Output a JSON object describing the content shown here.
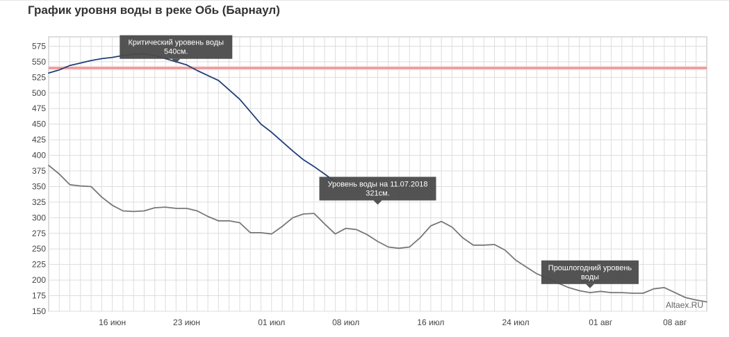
{
  "title": "График уровня воды в реке Обь (Барнаул)",
  "colors": {
    "current": "#1f3f7a",
    "last_year": "#777777",
    "critical": "#e07070",
    "tooltip_bg": "#4a4a4a",
    "grid": "#dddddd"
  },
  "chart_data": {
    "type": "line",
    "title": "График уровня воды в реке Обь (Барнаул)",
    "xlabel": "",
    "ylabel": "",
    "ylim": [
      150,
      590
    ],
    "xlim": [
      "2018-06-10",
      "2018-08-11"
    ],
    "x_ticks": [
      {
        "date": "2018-06-16",
        "label": "16 июн"
      },
      {
        "date": "2018-06-23",
        "label": "23 июн"
      },
      {
        "date": "2018-07-01",
        "label": "01 июл"
      },
      {
        "date": "2018-07-08",
        "label": "08 июл"
      },
      {
        "date": "2018-07-16",
        "label": "16 июл"
      },
      {
        "date": "2018-07-24",
        "label": "24 июл"
      },
      {
        "date": "2018-08-01",
        "label": "01 авг"
      },
      {
        "date": "2018-08-08",
        "label": "08 авг"
      }
    ],
    "y_ticks": [
      150,
      175,
      200,
      225,
      250,
      275,
      300,
      325,
      350,
      375,
      400,
      425,
      450,
      475,
      500,
      525,
      550,
      575
    ],
    "grid": true,
    "critical_level": 540,
    "series": [
      {
        "id": "current",
        "x": [
          "2018-06-10",
          "2018-06-11",
          "2018-06-12",
          "2018-06-13",
          "2018-06-14",
          "2018-06-15",
          "2018-06-16",
          "2018-06-17",
          "2018-06-18",
          "2018-06-19",
          "2018-06-20",
          "2018-06-21",
          "2018-06-22",
          "2018-06-23",
          "2018-06-24",
          "2018-06-25",
          "2018-06-26",
          "2018-06-27",
          "2018-06-28",
          "2018-06-29",
          "2018-06-30",
          "2018-07-01",
          "2018-07-02",
          "2018-07-03",
          "2018-07-04",
          "2018-07-05",
          "2018-07-06",
          "2018-07-07"
        ],
        "y": [
          532,
          537,
          544,
          548,
          552,
          555,
          557,
          560,
          562,
          563,
          560,
          555,
          550,
          545,
          536,
          528,
          520,
          505,
          490,
          470,
          450,
          437,
          422,
          407,
          393,
          382,
          370,
          358
        ]
      },
      {
        "id": "last_year",
        "x": [
          "2018-06-10",
          "2018-06-11",
          "2018-06-12",
          "2018-06-13",
          "2018-06-14",
          "2018-06-15",
          "2018-06-16",
          "2018-06-17",
          "2018-06-18",
          "2018-06-19",
          "2018-06-20",
          "2018-06-21",
          "2018-06-22",
          "2018-06-23",
          "2018-06-24",
          "2018-06-25",
          "2018-06-26",
          "2018-06-27",
          "2018-06-28",
          "2018-06-29",
          "2018-06-30",
          "2018-07-01",
          "2018-07-02",
          "2018-07-03",
          "2018-07-04",
          "2018-07-05",
          "2018-07-06",
          "2018-07-07",
          "2018-07-08",
          "2018-07-09",
          "2018-07-10",
          "2018-07-11",
          "2018-07-12",
          "2018-07-13",
          "2018-07-14",
          "2018-07-15",
          "2018-07-16",
          "2018-07-17",
          "2018-07-18",
          "2018-07-19",
          "2018-07-20",
          "2018-07-21",
          "2018-07-22",
          "2018-07-23",
          "2018-07-24",
          "2018-07-25",
          "2018-07-26",
          "2018-07-27",
          "2018-07-28",
          "2018-07-29",
          "2018-07-30",
          "2018-07-31",
          "2018-08-01",
          "2018-08-02",
          "2018-08-03",
          "2018-08-04",
          "2018-08-05",
          "2018-08-06",
          "2018-08-07",
          "2018-08-08",
          "2018-08-09",
          "2018-08-10",
          "2018-08-11"
        ],
        "y": [
          384,
          370,
          353,
          351,
          350,
          333,
          320,
          311,
          310,
          311,
          316,
          317,
          315,
          315,
          311,
          302,
          295,
          295,
          292,
          276,
          276,
          274,
          286,
          300,
          306,
          307,
          290,
          274,
          283,
          281,
          273,
          262,
          253,
          251,
          253,
          268,
          287,
          294,
          285,
          268,
          256,
          256,
          257,
          248,
          232,
          221,
          210,
          203,
          195,
          188,
          183,
          180,
          182,
          180,
          180,
          179,
          179,
          186,
          188,
          180,
          172,
          168,
          165
        ]
      }
    ],
    "annotations": [
      {
        "title": "Критический уровень воды",
        "value": "540см.",
        "date": "2018-06-22",
        "level": 548
      },
      {
        "title": "Уровень воды на 11.07.2018",
        "value": "321см.",
        "date": "2018-07-11",
        "level": 321
      },
      {
        "title": "Прошлогодний уровень",
        "title2": "воды",
        "date": "2018-07-31",
        "level": 187
      }
    ],
    "watermark": "Altaex.RU"
  }
}
